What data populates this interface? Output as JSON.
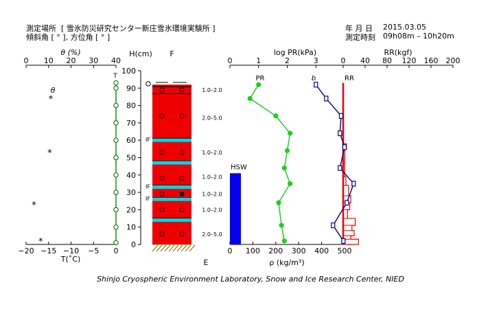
{
  "header": {
    "site_label": "測定場所",
    "site_value": "[ 雪氷防災研究センター新庄雪氷環境実験所 ]",
    "angle_label": "傾斜角 [ ° ], 方位角 [ ° ]",
    "date_label": "年 月 日",
    "date_value": "2015.03.05",
    "time_label": "測定時刻",
    "time_value": "09h08m – 10h20m"
  },
  "footer": "Shinjo Cryospheric Environment Laboratory, Snow and Ice Research Center, NIED",
  "chart_data": {
    "type": "snow-pit-profile",
    "colors": {
      "green": "#22cc22",
      "temp_green": "#228822",
      "red": "#ee0000",
      "cyan": "#00d5e0",
      "blue": "#0000ee",
      "navy": "#00007a",
      "ground": "#8b7a18"
    },
    "theta_axis": {
      "label": "θ (%)",
      "ticks": [
        "0",
        "10",
        "20",
        "30",
        "40"
      ],
      "values": [
        0,
        10,
        20,
        30,
        40
      ],
      "range": [
        0,
        40
      ]
    },
    "temperature_axis": {
      "label": "T(˚C)",
      "ticks": [
        "−20",
        "−15",
        "−10",
        "−5",
        "0"
      ],
      "values": [
        -20,
        -15,
        -10,
        -5,
        0
      ],
      "range": [
        -20,
        0
      ]
    },
    "height_axis": {
      "label": "H(cm)",
      "ticks": [
        "0",
        "10",
        "20",
        "30",
        "40",
        "50",
        "60",
        "70",
        "80",
        "90",
        "100"
      ],
      "values": [
        0,
        10,
        20,
        30,
        40,
        50,
        60,
        70,
        80,
        90,
        100
      ],
      "range": [
        0,
        100
      ]
    },
    "theta_label": "θ",
    "theta_points": [
      {
        "height": 84,
        "value": 11
      },
      {
        "height": 53,
        "value": 10.5
      },
      {
        "height": 23,
        "value": 3.5
      },
      {
        "height": 2,
        "value": 6.5
      }
    ],
    "temperature_label": "T",
    "temperature_points": [
      {
        "height": 93,
        "value": 0
      },
      {
        "height": 90,
        "value": 0
      },
      {
        "height": 80,
        "value": 0
      },
      {
        "height": 70,
        "value": 0
      },
      {
        "height": 60,
        "value": 0
      },
      {
        "height": 50,
        "value": 0
      },
      {
        "height": 40,
        "value": 0
      },
      {
        "height": 30,
        "value": 0
      },
      {
        "height": 20,
        "value": 0
      },
      {
        "height": 10,
        "value": 0
      },
      {
        "height": 1,
        "value": 0
      }
    ],
    "snow_column": {
      "top_label": "F",
      "bottom_label": "E",
      "top_height": 92,
      "ice_layers": [
        {
          "height": 60,
          "label": "IF"
        },
        {
          "height": 47,
          "label": ""
        },
        {
          "height": 33,
          "label": "IF"
        },
        {
          "height": 26,
          "label": "IF"
        },
        {
          "height": 14,
          "label": ""
        }
      ],
      "grain_marks": [
        {
          "height": 89,
          "filled": false
        },
        {
          "height": 74,
          "filled": false
        },
        {
          "height": 53,
          "filled": false
        },
        {
          "height": 38,
          "filled": false
        },
        {
          "height": 29,
          "filled": true
        },
        {
          "height": 20,
          "filled": false
        },
        {
          "height": 6,
          "filled": false
        }
      ],
      "grain_sizes": [
        {
          "height": 89,
          "text": "1.0–2.0"
        },
        {
          "height": 73,
          "text": "2.0–5.0"
        },
        {
          "height": 53,
          "text": "1.0–2.0"
        },
        {
          "height": 39,
          "text": "1.0–2.0"
        },
        {
          "height": 29,
          "text": "1.0–2.0"
        },
        {
          "height": 20,
          "text": "1.0–2.0"
        },
        {
          "height": 6,
          "text": "2.0–5.0"
        }
      ]
    },
    "density_axis": {
      "label": "ρ (kg/m³)",
      "ticks": [
        "0",
        "100",
        "200",
        "300",
        "400",
        "500"
      ],
      "values": [
        0,
        100,
        200,
        300,
        400,
        500
      ],
      "range": [
        0,
        500
      ]
    },
    "log_pr_axis": {
      "label": "log PR(kPa)",
      "ticks": [
        "0",
        "1",
        "2",
        "3"
      ],
      "values": [
        0,
        1,
        2,
        3
      ],
      "range": [
        0,
        4
      ]
    },
    "pr_label": "PR",
    "pr_points": [
      {
        "height": 92,
        "value": 1.0
      },
      {
        "height": 84,
        "value": 0.7
      },
      {
        "height": 74,
        "value": 1.6
      },
      {
        "height": 64,
        "value": 2.1
      },
      {
        "height": 54,
        "value": 2.0
      },
      {
        "height": 44,
        "value": 1.9
      },
      {
        "height": 35,
        "value": 2.1
      },
      {
        "height": 24,
        "value": 1.7
      },
      {
        "height": 11,
        "value": 1.8
      },
      {
        "height": 2,
        "value": 1.9
      }
    ],
    "hsw": {
      "label": "HSW",
      "value": 48,
      "height": 41
    },
    "rho_label": "b",
    "density_points": [
      {
        "height": 92,
        "value": 375
      },
      {
        "height": 84,
        "value": 420
      },
      {
        "height": 74,
        "value": 485
      },
      {
        "height": 64,
        "value": 480
      },
      {
        "height": 56,
        "value": 500
      },
      {
        "height": 44,
        "value": 480
      },
      {
        "height": 35,
        "value": 540
      },
      {
        "height": 24,
        "value": 510
      },
      {
        "height": 11,
        "value": 450
      },
      {
        "height": 2,
        "value": 495
      }
    ],
    "rr_axis": {
      "label": "RR(kgf)",
      "ticks": [
        "0",
        "40",
        "80",
        "120",
        "160",
        "200"
      ],
      "values": [
        0,
        40,
        80,
        120,
        160,
        200
      ],
      "range": [
        0,
        200
      ]
    },
    "rr_label": "RR",
    "ram_profile": [
      {
        "top": 93,
        "bottom": 58,
        "value": 0
      },
      {
        "top": 58,
        "bottom": 55,
        "value": 6
      },
      {
        "top": 55,
        "bottom": 47,
        "value": 3
      },
      {
        "top": 47,
        "bottom": 39,
        "value": 3
      },
      {
        "top": 39,
        "bottom": 34,
        "value": 5
      },
      {
        "top": 34,
        "bottom": 28,
        "value": 10
      },
      {
        "top": 28,
        "bottom": 24,
        "value": 14
      },
      {
        "top": 24,
        "bottom": 20,
        "value": 12
      },
      {
        "top": 20,
        "bottom": 15,
        "value": 8
      },
      {
        "top": 15,
        "bottom": 11,
        "value": 22
      },
      {
        "top": 11,
        "bottom": 8,
        "value": 16
      },
      {
        "top": 8,
        "bottom": 5,
        "value": 20
      },
      {
        "top": 5,
        "bottom": 3,
        "value": 14
      },
      {
        "top": 3,
        "bottom": 0,
        "value": 28
      }
    ]
  }
}
